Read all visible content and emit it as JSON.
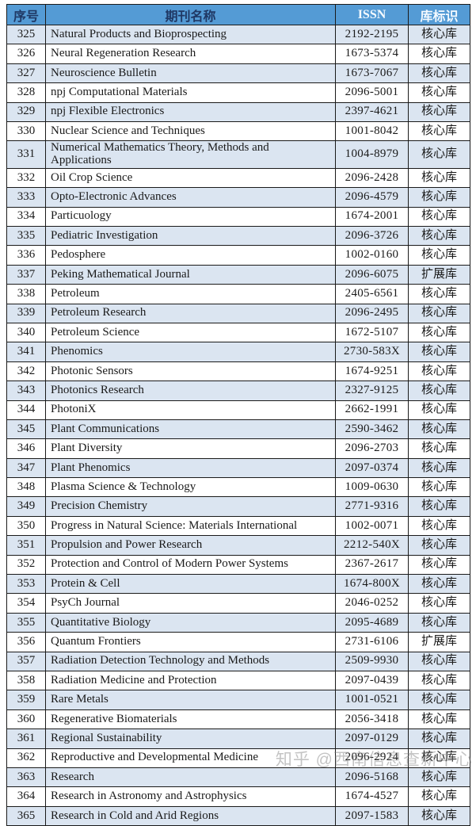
{
  "table": {
    "columns": {
      "num": "序号",
      "name": "期刊名称",
      "issn": "ISSN",
      "tag": "库标识"
    },
    "tags": {
      "core": "核心库",
      "extended": "扩展库"
    },
    "colors": {
      "header_bg": "#549bd5",
      "header_text_dark": "#1f3864",
      "header_text_light": "#f4faff",
      "shaded_row_bg": "#dbe5f1",
      "border": "#1a1a1a"
    },
    "rows": [
      {
        "num": "325",
        "name": "Natural Products and Bioprospecting",
        "issn": "2192-2195",
        "tag": "核心库"
      },
      {
        "num": "326",
        "name": "Neural Regeneration Research",
        "issn": "1673-5374",
        "tag": "核心库"
      },
      {
        "num": "327",
        "name": "Neuroscience Bulletin",
        "issn": "1673-7067",
        "tag": "核心库"
      },
      {
        "num": "328",
        "name": "npj Computational Materials",
        "issn": "2096-5001",
        "tag": "核心库"
      },
      {
        "num": "329",
        "name": "npj Flexible Electronics",
        "issn": "2397-4621",
        "tag": "核心库"
      },
      {
        "num": "330",
        "name": "Nuclear Science and Techniques",
        "issn": "1001-8042",
        "tag": "核心库"
      },
      {
        "num": "331",
        "name": "Numerical Mathematics Theory, Methods and Applications",
        "issn": "1004-8979",
        "tag": "核心库"
      },
      {
        "num": "332",
        "name": "Oil Crop Science",
        "issn": "2096-2428",
        "tag": "核心库"
      },
      {
        "num": "333",
        "name": "Opto-Electronic Advances",
        "issn": "2096-4579",
        "tag": "核心库"
      },
      {
        "num": "334",
        "name": "Particuology",
        "issn": "1674-2001",
        "tag": "核心库"
      },
      {
        "num": "335",
        "name": "Pediatric Investigation",
        "issn": "2096-3726",
        "tag": "核心库"
      },
      {
        "num": "336",
        "name": "Pedosphere",
        "issn": "1002-0160",
        "tag": "核心库"
      },
      {
        "num": "337",
        "name": "Peking Mathematical Journal",
        "issn": "2096-6075",
        "tag": "扩展库"
      },
      {
        "num": "338",
        "name": "Petroleum",
        "issn": "2405-6561",
        "tag": "核心库"
      },
      {
        "num": "339",
        "name": "Petroleum Research",
        "issn": "2096-2495",
        "tag": "核心库"
      },
      {
        "num": "340",
        "name": "Petroleum Science",
        "issn": "1672-5107",
        "tag": "核心库"
      },
      {
        "num": "341",
        "name": "Phenomics",
        "issn": "2730-583X",
        "tag": "核心库"
      },
      {
        "num": "342",
        "name": "Photonic Sensors",
        "issn": "1674-9251",
        "tag": "核心库"
      },
      {
        "num": "343",
        "name": "Photonics Research",
        "issn": "2327-9125",
        "tag": "核心库"
      },
      {
        "num": "344",
        "name": "PhotoniX",
        "issn": "2662-1991",
        "tag": "核心库"
      },
      {
        "num": "345",
        "name": "Plant Communications",
        "issn": "2590-3462",
        "tag": "核心库"
      },
      {
        "num": "346",
        "name": "Plant Diversity",
        "issn": "2096-2703",
        "tag": "核心库"
      },
      {
        "num": "347",
        "name": "Plant Phenomics",
        "issn": "2097-0374",
        "tag": "核心库"
      },
      {
        "num": "348",
        "name": "Plasma Science & Technology",
        "issn": "1009-0630",
        "tag": "核心库"
      },
      {
        "num": "349",
        "name": "Precision Chemistry",
        "issn": "2771-9316",
        "tag": "核心库"
      },
      {
        "num": "350",
        "name": "Progress in Natural Science: Materials International",
        "issn": "1002-0071",
        "tag": "核心库"
      },
      {
        "num": "351",
        "name": "Propulsion and Power Research",
        "issn": "2212-540X",
        "tag": "核心库"
      },
      {
        "num": "352",
        "name": "Protection and Control of Modern Power Systems",
        "issn": "2367-2617",
        "tag": "核心库"
      },
      {
        "num": "353",
        "name": "Protein & Cell",
        "issn": "1674-800X",
        "tag": "核心库"
      },
      {
        "num": "354",
        "name": "PsyCh Journal",
        "issn": "2046-0252",
        "tag": "核心库"
      },
      {
        "num": "355",
        "name": "Quantitative Biology",
        "issn": "2095-4689",
        "tag": "核心库"
      },
      {
        "num": "356",
        "name": "Quantum Frontiers",
        "issn": "2731-6106",
        "tag": "扩展库"
      },
      {
        "num": "357",
        "name": "Radiation Detection Technology and Methods",
        "issn": "2509-9930",
        "tag": "核心库"
      },
      {
        "num": "358",
        "name": "Radiation Medicine and Protection",
        "issn": "2097-0439",
        "tag": "核心库"
      },
      {
        "num": "359",
        "name": "Rare Metals",
        "issn": "1001-0521",
        "tag": "核心库"
      },
      {
        "num": "360",
        "name": "Regenerative Biomaterials",
        "issn": "2056-3418",
        "tag": "核心库"
      },
      {
        "num": "361",
        "name": "Regional Sustainability",
        "issn": "2097-0129",
        "tag": "核心库"
      },
      {
        "num": "362",
        "name": "Reproductive and Developmental Medicine",
        "issn": "2096-2924",
        "tag": "核心库"
      },
      {
        "num": "363",
        "name": "Research",
        "issn": "2096-5168",
        "tag": "核心库"
      },
      {
        "num": "364",
        "name": "Research in Astronomy and Astrophysics",
        "issn": "1674-4527",
        "tag": "核心库"
      },
      {
        "num": "365",
        "name": "Research in Cold and Arid Regions",
        "issn": "2097-1583",
        "tag": "核心库"
      }
    ]
  },
  "watermark": {
    "text": "知乎 @西南信息查新中心"
  }
}
